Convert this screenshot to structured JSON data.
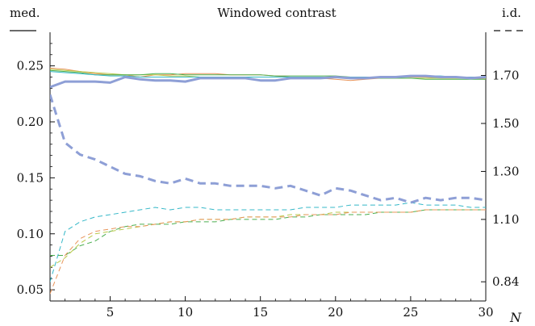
{
  "chart_data": {
    "type": "line",
    "title": "Windowed contrast",
    "left_axis_label": "med.",
    "right_axis_label": "i.d.",
    "xlabel": "N",
    "xlim": [
      1,
      30
    ],
    "ylim_left": [
      0.04,
      0.28
    ],
    "ylim_right": [
      0.76,
      1.88
    ],
    "x_ticks": [
      5,
      10,
      15,
      20,
      25,
      30
    ],
    "x_tick_labels": [
      "5",
      "10",
      "15",
      "20",
      "25",
      "30"
    ],
    "y_left_ticks": [
      0.05,
      0.1,
      0.15,
      0.2,
      0.25
    ],
    "y_left_tick_labels": [
      "0.05",
      "0.10",
      "0.15",
      "0.20",
      "0.25"
    ],
    "y_right_ticks": [
      0.84,
      1.1,
      1.3,
      1.5,
      1.7
    ],
    "y_right_tick_labels": [
      "0.84",
      "1.10",
      "1.30",
      "1.50",
      "1.70"
    ],
    "grid": false,
    "x": [
      1,
      2,
      3,
      4,
      5,
      6,
      7,
      8,
      9,
      10,
      11,
      12,
      13,
      14,
      15,
      16,
      17,
      18,
      19,
      20,
      21,
      22,
      23,
      24,
      25,
      26,
      27,
      28,
      29,
      30
    ],
    "series": [
      {
        "axis": "left",
        "style": "solid",
        "color": "#e8945a",
        "width": 1,
        "values": [
          0.248,
          0.247,
          0.245,
          0.243,
          0.242,
          0.242,
          0.24,
          0.242,
          0.242,
          0.243,
          0.243,
          0.243,
          0.242,
          0.242,
          0.242,
          0.241,
          0.24,
          0.24,
          0.239,
          0.238,
          0.237,
          0.238,
          0.239,
          0.24,
          0.24,
          0.24,
          0.239,
          0.239,
          0.239,
          0.238
        ]
      },
      {
        "axis": "left",
        "style": "solid",
        "color": "#b8c94a",
        "width": 1,
        "values": [
          0.247,
          0.246,
          0.245,
          0.244,
          0.243,
          0.242,
          0.242,
          0.242,
          0.241,
          0.241,
          0.24,
          0.24,
          0.24,
          0.24,
          0.24,
          0.24,
          0.24,
          0.24,
          0.24,
          0.24,
          0.24,
          0.239,
          0.239,
          0.239,
          0.239,
          0.239,
          0.239,
          0.239,
          0.239,
          0.239
        ]
      },
      {
        "axis": "left",
        "style": "solid",
        "color": "#4caf50",
        "width": 1,
        "values": [
          0.246,
          0.245,
          0.244,
          0.242,
          0.242,
          0.242,
          0.242,
          0.243,
          0.243,
          0.242,
          0.242,
          0.242,
          0.242,
          0.242,
          0.242,
          0.241,
          0.241,
          0.241,
          0.241,
          0.241,
          0.24,
          0.24,
          0.239,
          0.239,
          0.239,
          0.238,
          0.238,
          0.238,
          0.238,
          0.238
        ]
      },
      {
        "axis": "left",
        "style": "solid",
        "color": "#35b8c8",
        "width": 1,
        "values": [
          0.245,
          0.244,
          0.243,
          0.242,
          0.241,
          0.241,
          0.24,
          0.24,
          0.24,
          0.24,
          0.24,
          0.24,
          0.24,
          0.24,
          0.24,
          0.24,
          0.24,
          0.24,
          0.24,
          0.24,
          0.24,
          0.24,
          0.24,
          0.24,
          0.241,
          0.241,
          0.241,
          0.24,
          0.24,
          0.24
        ]
      },
      {
        "axis": "left",
        "style": "solid",
        "color": "#8e9fd6",
        "width": 3,
        "values": [
          0.231,
          0.236,
          0.236,
          0.236,
          0.235,
          0.24,
          0.238,
          0.237,
          0.237,
          0.236,
          0.239,
          0.239,
          0.239,
          0.239,
          0.237,
          0.237,
          0.239,
          0.239,
          0.239,
          0.24,
          0.239,
          0.239,
          0.24,
          0.24,
          0.241,
          0.241,
          0.24,
          0.24,
          0.239,
          0.24
        ]
      },
      {
        "axis": "right",
        "style": "dashed",
        "color": "#8e9fd6",
        "width": 3,
        "values": [
          1.62,
          1.42,
          1.37,
          1.35,
          1.32,
          1.29,
          1.28,
          1.26,
          1.25,
          1.27,
          1.25,
          1.25,
          1.24,
          1.24,
          1.24,
          1.23,
          1.24,
          1.22,
          1.2,
          1.23,
          1.22,
          1.2,
          1.18,
          1.19,
          1.17,
          1.19,
          1.18,
          1.19,
          1.19,
          1.18
        ]
      },
      {
        "axis": "right",
        "style": "dashed",
        "color": "#35b8c8",
        "width": 1,
        "values": [
          0.84,
          1.05,
          1.09,
          1.11,
          1.12,
          1.13,
          1.14,
          1.15,
          1.14,
          1.15,
          1.15,
          1.14,
          1.14,
          1.14,
          1.14,
          1.14,
          1.14,
          1.15,
          1.15,
          1.15,
          1.16,
          1.16,
          1.16,
          1.16,
          1.17,
          1.16,
          1.16,
          1.16,
          1.15,
          1.15
        ]
      },
      {
        "axis": "right",
        "style": "dashed",
        "color": "#4caf50",
        "width": 1,
        "values": [
          0.95,
          0.95,
          0.99,
          1.01,
          1.05,
          1.07,
          1.08,
          1.08,
          1.08,
          1.09,
          1.09,
          1.09,
          1.1,
          1.1,
          1.1,
          1.1,
          1.11,
          1.11,
          1.12,
          1.12,
          1.12,
          1.12,
          1.13,
          1.13,
          1.13,
          1.14,
          1.14,
          1.14,
          1.14,
          1.14
        ]
      },
      {
        "axis": "right",
        "style": "dashed",
        "color": "#b8c94a",
        "width": 1,
        "values": [
          0.9,
          0.94,
          1.0,
          1.04,
          1.05,
          1.06,
          1.07,
          1.08,
          1.09,
          1.09,
          1.1,
          1.1,
          1.1,
          1.11,
          1.11,
          1.11,
          1.12,
          1.12,
          1.12,
          1.13,
          1.13,
          1.13,
          1.13,
          1.13,
          1.13,
          1.14,
          1.14,
          1.14,
          1.14,
          1.14
        ]
      },
      {
        "axis": "right",
        "style": "dashed",
        "color": "#e8945a",
        "width": 1,
        "values": [
          0.79,
          0.95,
          1.02,
          1.05,
          1.06,
          1.07,
          1.07,
          1.08,
          1.09,
          1.09,
          1.1,
          1.1,
          1.1,
          1.11,
          1.11,
          1.11,
          1.11,
          1.12,
          1.12,
          1.12,
          1.13,
          1.13,
          1.13,
          1.13,
          1.13,
          1.14,
          1.14,
          1.14,
          1.14,
          1.14
        ]
      }
    ]
  }
}
